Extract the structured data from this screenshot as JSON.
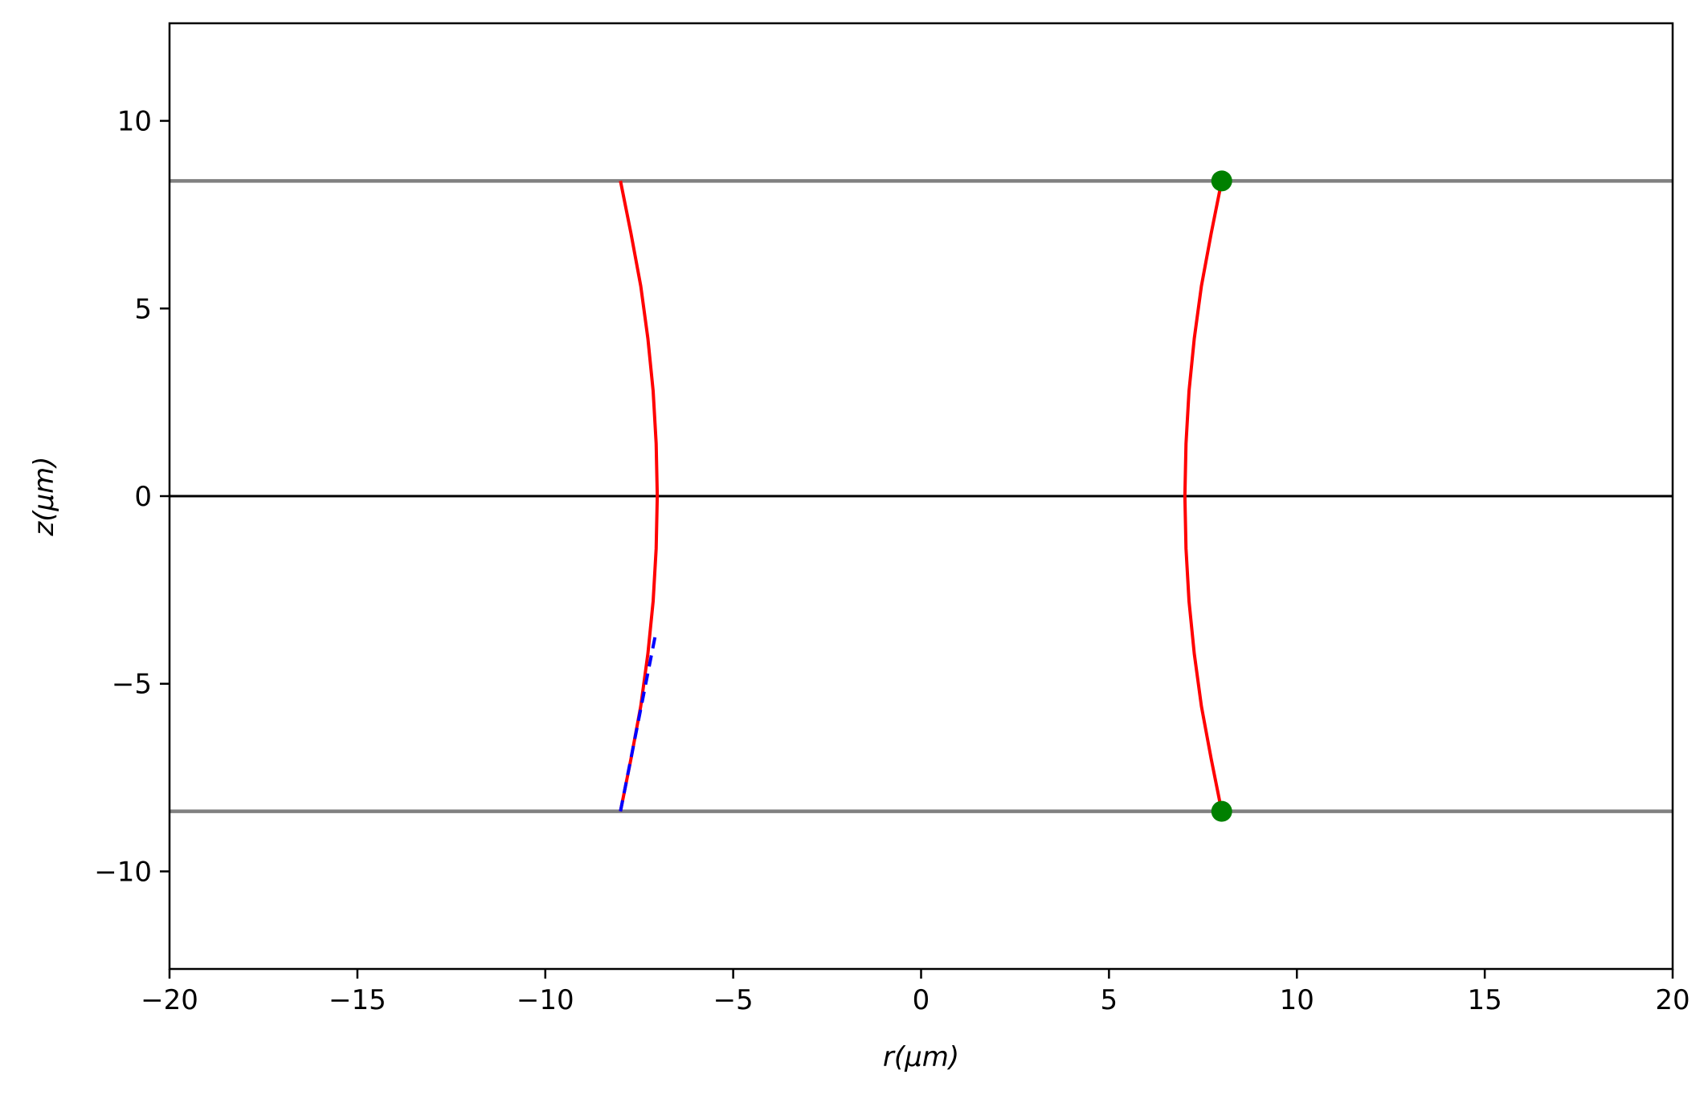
{
  "chart_data": {
    "type": "line",
    "title": "",
    "xlabel": "r(μm)",
    "ylabel": "z(μm)",
    "xlim": [
      -20,
      20
    ],
    "ylim": [
      -12.6,
      12.6
    ],
    "grid": false,
    "xticks": [
      -20,
      -15,
      -10,
      -5,
      0,
      5,
      10,
      15,
      20
    ],
    "xtick_labels": [
      "−20",
      "−15",
      "−10",
      "−5",
      "0",
      "5",
      "10",
      "15",
      "20"
    ],
    "yticks": [
      -10,
      -5,
      0,
      5,
      10
    ],
    "ytick_labels": [
      "−10",
      "−5",
      "0",
      "5",
      "10"
    ],
    "reference_lines": [
      {
        "y": 8.4,
        "color": "#808080"
      },
      {
        "y": -8.4,
        "color": "#808080"
      },
      {
        "y": 0,
        "color": "#000000"
      }
    ],
    "series": [
      {
        "style": "solid",
        "color": "#ff0000",
        "x": [
          -8.0,
          -7.72,
          -7.46,
          -7.27,
          -7.13,
          -7.05,
          -7.02,
          -7.05,
          -7.13,
          -7.27,
          -7.46,
          -7.72,
          -8.0
        ],
        "y": [
          8.4,
          7.0,
          5.6,
          4.2,
          2.8,
          1.4,
          0,
          -1.4,
          -2.8,
          -4.2,
          -5.6,
          -7.0,
          -8.4
        ]
      },
      {
        "style": "solid",
        "color": "#ff0000",
        "x": [
          8.0,
          7.72,
          7.46,
          7.27,
          7.13,
          7.05,
          7.02,
          7.05,
          7.13,
          7.27,
          7.46,
          7.72,
          8.0
        ],
        "y": [
          8.4,
          7.0,
          5.6,
          4.2,
          2.8,
          1.4,
          0,
          -1.4,
          -2.8,
          -4.2,
          -5.6,
          -7.0,
          -8.4
        ]
      },
      {
        "style": "dashed",
        "color": "#0000ff",
        "x": [
          -8.0,
          -7.05
        ],
        "y": [
          -8.4,
          -3.6
        ]
      }
    ],
    "points": {
      "color": "#008000",
      "x": [
        8.0,
        8.0
      ],
      "y": [
        8.4,
        -8.4
      ]
    }
  }
}
